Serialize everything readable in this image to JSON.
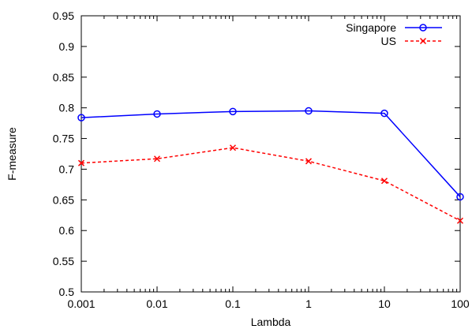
{
  "chart_data": {
    "type": "line",
    "xlabel": "Lambda",
    "ylabel": "F-measure",
    "x": [
      0.001,
      0.01,
      0.1,
      1,
      10,
      100
    ],
    "x_tick_labels": [
      "0.001",
      "0.01",
      "0.1",
      "1",
      "10",
      "100"
    ],
    "x_scale": "log",
    "ylim": [
      0.5,
      0.95
    ],
    "y_ticks": [
      0.5,
      0.55,
      0.6,
      0.65,
      0.7,
      0.75,
      0.8,
      0.85,
      0.9,
      0.95
    ],
    "y_tick_labels": [
      "0.5",
      "0.55",
      "0.6",
      "0.65",
      "0.7",
      "0.75",
      "0.8",
      "0.85",
      "0.9",
      "0.95"
    ],
    "grid": false,
    "legend_position": "top-right",
    "series": [
      {
        "name": "Singapore",
        "values": [
          0.784,
          0.79,
          0.794,
          0.795,
          0.791,
          0.655
        ],
        "color": "#0000ff",
        "line_style": "solid",
        "marker": "circle"
      },
      {
        "name": "US",
        "values": [
          0.71,
          0.717,
          0.735,
          0.713,
          0.681,
          0.616
        ],
        "color": "#ff0000",
        "line_style": "dashed",
        "marker": "cross"
      }
    ]
  }
}
